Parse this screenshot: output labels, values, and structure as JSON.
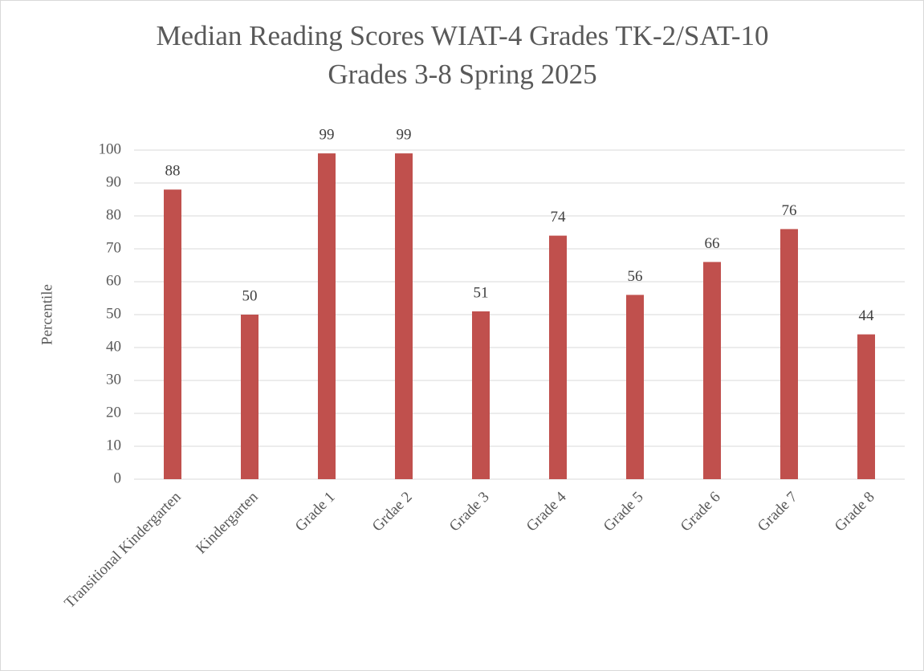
{
  "chart_data": {
    "type": "bar",
    "title": [
      "Median Reading Scores WIAT-4 Grades TK-2/SAT-10",
      "Grades 3-8 Spring 2025"
    ],
    "y_label": "Percentile",
    "categories": [
      "Transitional Kindergarten",
      "Kindergarten",
      "Grade 1",
      "Grdae 2",
      "Grade 3",
      "Grade 4",
      "Grade 5",
      "Grade 6",
      "Grade 7",
      "Grade 8"
    ],
    "values": [
      88,
      50,
      99,
      99,
      51,
      74,
      56,
      66,
      76,
      44
    ],
    "color": "#c0504d",
    "ylim": [
      0,
      100
    ],
    "yticks": [
      0,
      10,
      20,
      30,
      40,
      50,
      60,
      70,
      80,
      90,
      100
    ],
    "grid": true
  }
}
